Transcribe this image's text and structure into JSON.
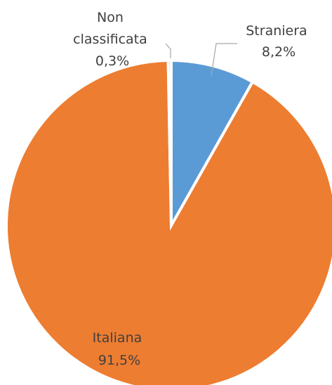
{
  "chart_data": {
    "type": "pie",
    "categories": [
      "Straniera",
      "Italiana",
      "Non classificata"
    ],
    "values": [
      8.2,
      91.5,
      0.3
    ],
    "value_labels": [
      "8,2%",
      "91,5%",
      "0,3%"
    ],
    "colors": [
      "#5b9bd5",
      "#ed7d31",
      "#a5a5a5"
    ],
    "label_lines": [
      [
        "Straniera"
      ],
      [
        "Italiana"
      ],
      [
        "Non",
        "classificata"
      ]
    ],
    "start_angle": "12 o'clock",
    "direction": "clockwise",
    "legend": "none",
    "data_labels": "outside with leader lines for small slices"
  }
}
